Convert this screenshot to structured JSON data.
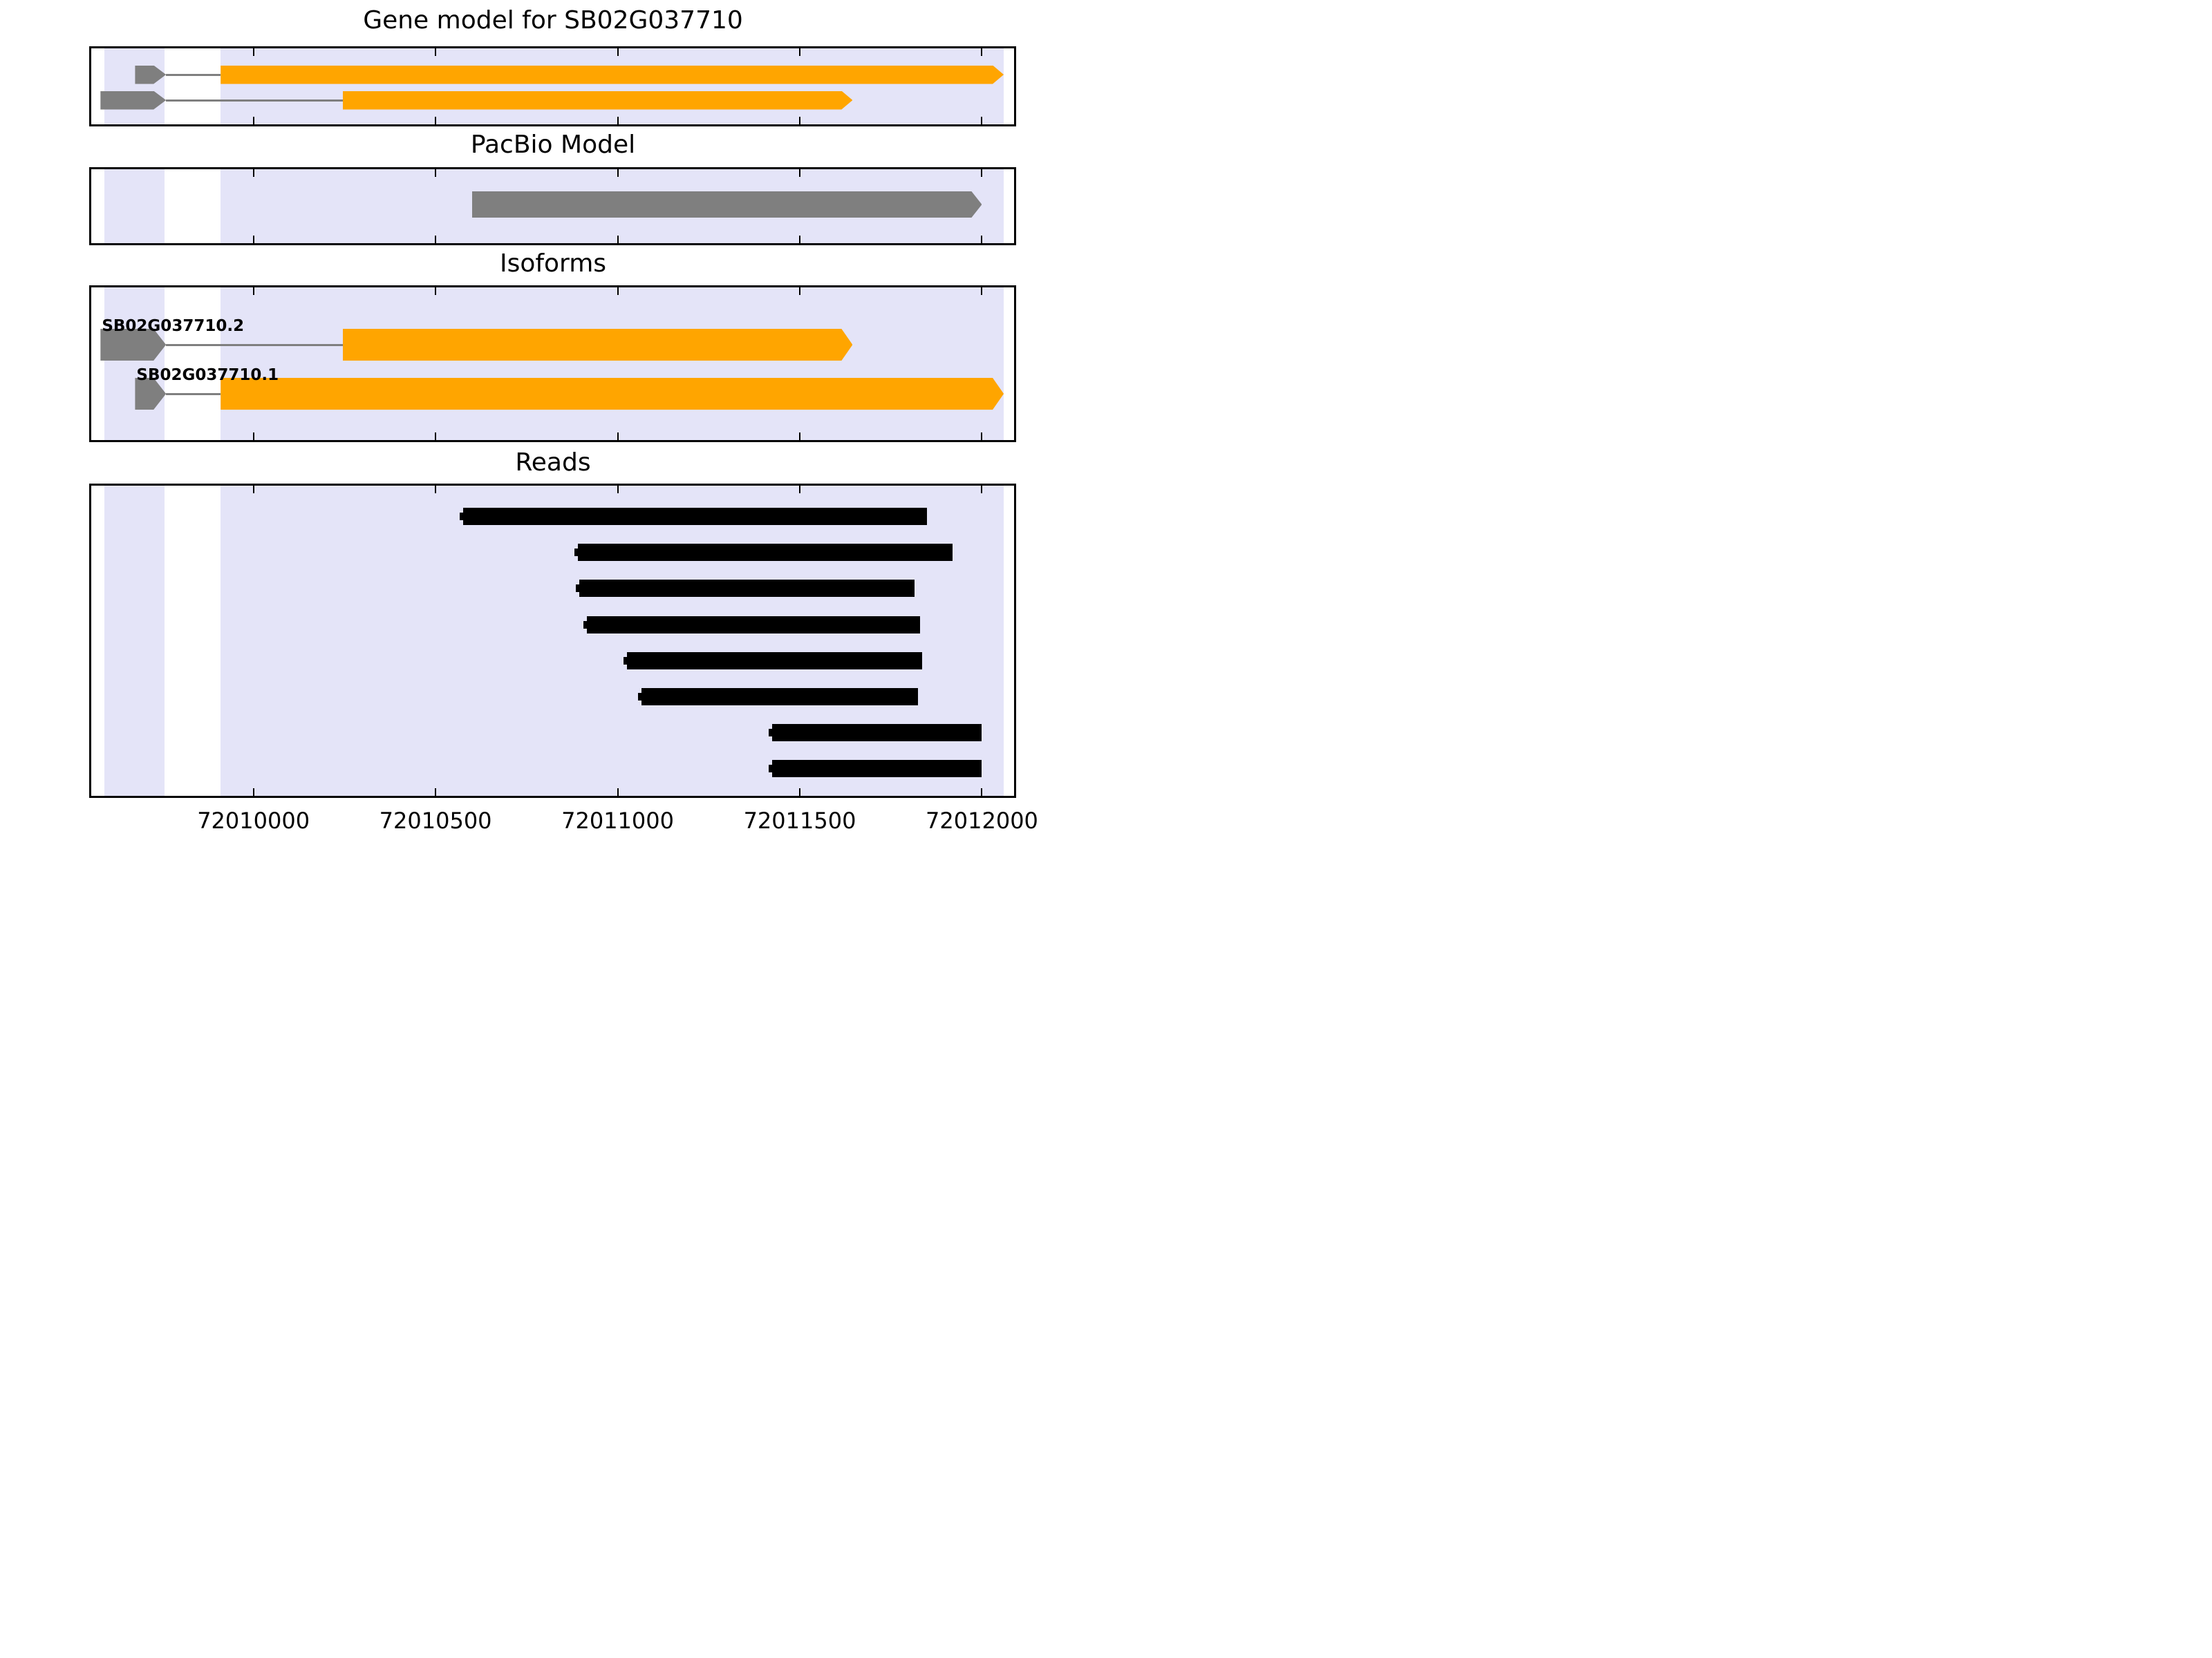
{
  "chart_data": {
    "type": "genome-annotation-tracks",
    "gene_id": "SB02G037710",
    "x_axis": {
      "min": 72009549,
      "max": 72012094,
      "ticks": [
        72010000,
        72010500,
        72011000,
        72011500,
        72012000
      ],
      "tick_labels": [
        "72010000",
        "72010500",
        "72011000",
        "72011500",
        "72012000"
      ],
      "grid": false
    },
    "shaded_regions": [
      {
        "start": 72009590,
        "end": 72009755
      },
      {
        "start": 72009910,
        "end": 72012060
      }
    ],
    "panels": [
      {
        "id": "gene_model",
        "title": "Gene model for SB02G037710",
        "transcripts": [
          {
            "name": "SB02G037710.1",
            "show_label": false,
            "strand": "+",
            "leader_exon": {
              "start": 72009675,
              "end": 72009760
            },
            "intron": {
              "start": 72009760,
              "end": 72009910
            },
            "main_exon": {
              "start": 72009910,
              "end": 72012060
            }
          },
          {
            "name": "SB02G037710.2",
            "show_label": false,
            "strand": "+",
            "leader_exon": {
              "start": 72009580,
              "end": 72009760
            },
            "intron": {
              "start": 72009760,
              "end": 72010245
            },
            "main_exon": {
              "start": 72010245,
              "end": 72011645
            }
          }
        ]
      },
      {
        "id": "pacbio",
        "title": "PacBio Model",
        "model": {
          "start": 72010600,
          "end": 72012000,
          "strand": "+"
        }
      },
      {
        "id": "isoforms",
        "title": "Isoforms",
        "transcripts": [
          {
            "name": "SB02G037710.2",
            "show_label": true,
            "strand": "+",
            "leader_exon": {
              "start": 72009580,
              "end": 72009760
            },
            "intron": {
              "start": 72009760,
              "end": 72010245
            },
            "main_exon": {
              "start": 72010245,
              "end": 72011645
            }
          },
          {
            "name": "SB02G037710.1",
            "show_label": true,
            "strand": "+",
            "leader_exon": {
              "start": 72009675,
              "end": 72009760
            },
            "intron": {
              "start": 72009760,
              "end": 72009910
            },
            "main_exon": {
              "start": 72009910,
              "end": 72012060
            }
          }
        ]
      },
      {
        "id": "reads",
        "title": "Reads",
        "reads": [
          {
            "start": 72010575,
            "end": 72011850
          },
          {
            "start": 72010890,
            "end": 72011920
          },
          {
            "start": 72010895,
            "end": 72011815
          },
          {
            "start": 72010915,
            "end": 72011830
          },
          {
            "start": 72011025,
            "end": 72011835
          },
          {
            "start": 72011065,
            "end": 72011825
          },
          {
            "start": 72011425,
            "end": 72012000
          },
          {
            "start": 72011425,
            "end": 72012000
          }
        ]
      }
    ]
  },
  "colors": {
    "exon_orange": "#ffa500",
    "leader_gray": "#7f7f7f",
    "pacbio_gray": "#7f7f7f",
    "read_black": "#000000",
    "shading_lavender": "#e4e4f8",
    "axis_black": "#000000",
    "background": "#ffffff"
  }
}
